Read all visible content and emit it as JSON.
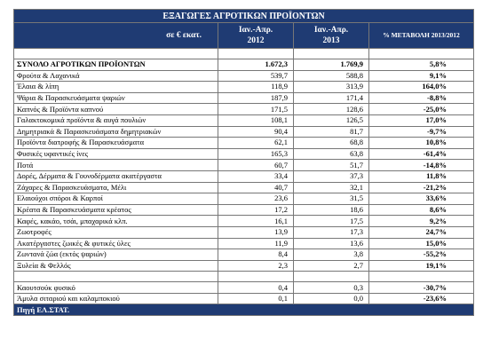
{
  "title": "ΕΞΑΓΩΓΕΣ ΑΓΡΟΤΙΚΩΝ ΠΡΟΪΟΝΤΩΝ",
  "header": {
    "unit": "σε € εκατ.",
    "period_a": "Ιαν.-Απρ.",
    "year_a": "2012",
    "period_b": "Ιαν.-Απρ.",
    "year_b": "2013",
    "change": "% ΜΕΤΑΒΟΛΗ 2013/2012"
  },
  "rows": [
    [
      "ΣΥΝΟΛΟ ΑΓΡΟΤΙΚΩΝ ΠΡΟΪΟΝΤΩΝ",
      "1.672,3",
      "1.769,9",
      "5,8%"
    ],
    [
      "Φρούτα & Λαχανικά",
      "539,7",
      "588,8",
      "9,1%"
    ],
    [
      "Έλαια & λίπη",
      "118,9",
      "313,9",
      "164,0%"
    ],
    [
      "Ψάρια & Παρασκευάσματα ψαριών",
      "187,9",
      "171,4",
      "-8,8%"
    ],
    [
      "Καπνός & Προϊόντα καπνού",
      "171,5",
      "128,6",
      "-25,0%"
    ],
    [
      "Γαλακτοκομικά προϊόντα & αυγά πουλιών",
      "108,1",
      "126,5",
      "17,0%"
    ],
    [
      "Δημητριακά & Παρασκευάσματα δημητριακών",
      "90,4",
      "81,7",
      "-9,7%"
    ],
    [
      "Προϊόντα διατροφής & Παρασκευάσματα",
      "62,1",
      "68,8",
      "10,8%"
    ],
    [
      "Φυσικές υφαντικές ίνες",
      "165,3",
      "63,8",
      "-61,4%"
    ],
    [
      "Ποτά",
      "60,7",
      "51,7",
      "-14,8%"
    ],
    [
      "Δορές, Δέρματα & Γουνοδέρματα ακατέργαστα",
      "33,4",
      "37,3",
      "11,8%"
    ],
    [
      "Ζάχαρες & Παρασκευάσματα, Μέλι",
      "40,7",
      "32,1",
      "-21,2%"
    ],
    [
      "Ελαιούχοι σπόροι & Καρποί",
      "23,6",
      "31,5",
      "33,6%"
    ],
    [
      "Κρέατα & Παρασκευάσματα κρέατος",
      "17,2",
      "18,6",
      "8,6%"
    ],
    [
      "Καφές, κακάο, τσάι, μπαχαρικά κλπ.",
      "16,1",
      "17,5",
      "9,2%"
    ],
    [
      "Ζωοτροφές",
      "13,9",
      "17,3",
      "24,7%"
    ],
    [
      "Ακατέργαστες ζωικές & φυτικές ύλες",
      "11,9",
      "13,6",
      "15,0%"
    ],
    [
      "Ζωντανά ζώα (εκτός ψαριών)",
      "8,4",
      "3,8",
      "-55,2%"
    ],
    [
      "Ξυλεία & Φελλός",
      "2,3",
      "2,7",
      "19,1%"
    ]
  ],
  "rows_minor": [
    [
      "Καουτσούκ φυσικό",
      "0,4",
      "0,3",
      "-30,7%"
    ],
    [
      "Άμυλα σιταριού και καλαμποκιού",
      "0,1",
      "0,0",
      "-23,6%"
    ]
  ],
  "source": "Πηγή ΕΛ.ΣΤΑΤ."
}
